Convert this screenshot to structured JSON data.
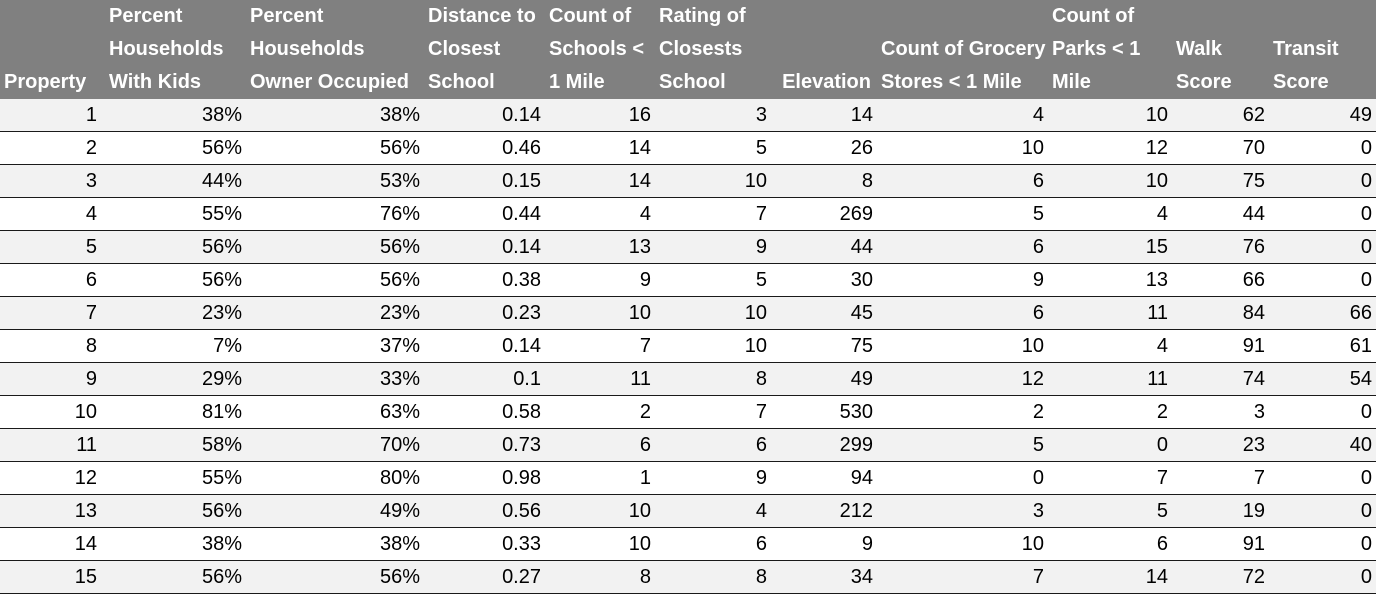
{
  "table": {
    "headers": [
      "Property",
      "Percent Households With Kids",
      "Percent Households Owner Occupied",
      "Distance to Closest School",
      "Count of Schools < 1 Mile",
      "Rating of Closests School",
      "Elevation",
      "Count of Grocery Stores < 1 Mile",
      "Count of Parks < 1 Mile",
      "Walk Score",
      "Transit Score"
    ],
    "rows": [
      [
        "1",
        "38%",
        "38%",
        "0.14",
        "16",
        "3",
        "14",
        "4",
        "10",
        "62",
        "49"
      ],
      [
        "2",
        "56%",
        "56%",
        "0.46",
        "14",
        "5",
        "26",
        "10",
        "12",
        "70",
        "0"
      ],
      [
        "3",
        "44%",
        "53%",
        "0.15",
        "14",
        "10",
        "8",
        "6",
        "10",
        "75",
        "0"
      ],
      [
        "4",
        "55%",
        "76%",
        "0.44",
        "4",
        "7",
        "269",
        "5",
        "4",
        "44",
        "0"
      ],
      [
        "5",
        "56%",
        "56%",
        "0.14",
        "13",
        "9",
        "44",
        "6",
        "15",
        "76",
        "0"
      ],
      [
        "6",
        "56%",
        "56%",
        "0.38",
        "9",
        "5",
        "30",
        "9",
        "13",
        "66",
        "0"
      ],
      [
        "7",
        "23%",
        "23%",
        "0.23",
        "10",
        "10",
        "45",
        "6",
        "11",
        "84",
        "66"
      ],
      [
        "8",
        "7%",
        "37%",
        "0.14",
        "7",
        "10",
        "75",
        "10",
        "4",
        "91",
        "61"
      ],
      [
        "9",
        "29%",
        "33%",
        "0.1",
        "11",
        "8",
        "49",
        "12",
        "11",
        "74",
        "54"
      ],
      [
        "10",
        "81%",
        "63%",
        "0.58",
        "2",
        "7",
        "530",
        "2",
        "2",
        "3",
        "0"
      ],
      [
        "11",
        "58%",
        "70%",
        "0.73",
        "6",
        "6",
        "299",
        "5",
        "0",
        "23",
        "40"
      ],
      [
        "12",
        "55%",
        "80%",
        "0.98",
        "1",
        "9",
        "94",
        "0",
        "7",
        "7",
        "0"
      ],
      [
        "13",
        "56%",
        "49%",
        "0.56",
        "10",
        "4",
        "212",
        "3",
        "5",
        "19",
        "0"
      ],
      [
        "14",
        "38%",
        "38%",
        "0.33",
        "10",
        "6",
        "9",
        "10",
        "6",
        "91",
        "0"
      ],
      [
        "15",
        "56%",
        "56%",
        "0.27",
        "8",
        "8",
        "34",
        "7",
        "14",
        "72",
        "0"
      ]
    ]
  }
}
